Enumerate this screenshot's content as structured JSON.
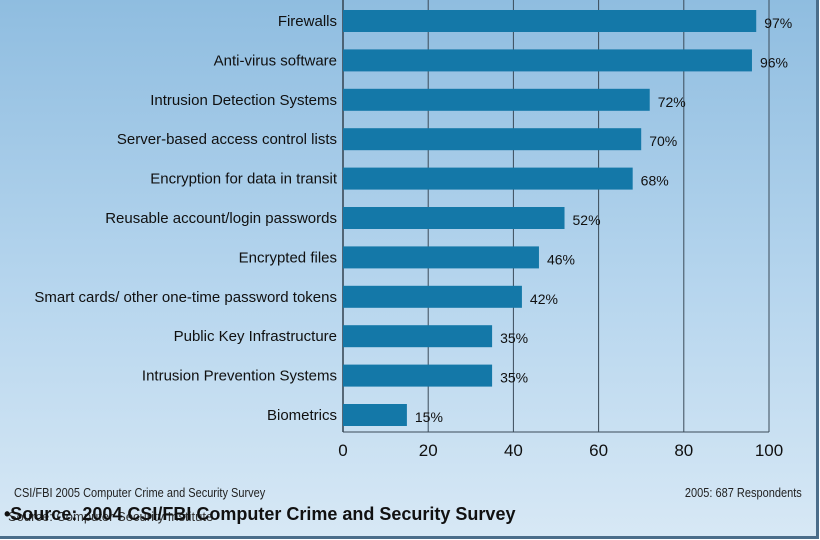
{
  "chart_data": {
    "type": "bar",
    "orientation": "horizontal",
    "categories": [
      "Firewalls",
      "Anti-virus software",
      "Intrusion Detection Systems",
      "Server-based access control lists",
      "Encryption for data in transit",
      "Reusable account/login passwords",
      "Encrypted files",
      "Smart cards/ other one-time password tokens",
      "Public Key Infrastructure",
      "Intrusion Prevention Systems",
      "Biometrics"
    ],
    "values": [
      97,
      96,
      72,
      70,
      68,
      52,
      46,
      42,
      35,
      35,
      15
    ],
    "value_labels": [
      "97%",
      "96%",
      "72%",
      "70%",
      "68%",
      "52%",
      "46%",
      "42%",
      "35%",
      "35%",
      "15%"
    ],
    "xlim": [
      0,
      100
    ],
    "xticks": [
      "0",
      "20",
      "40",
      "60",
      "80",
      "100"
    ],
    "grid": true,
    "bar_color": "#1478a8"
  },
  "footer": {
    "survey": "CSI/FBI 2005 Computer Crime and Security Survey",
    "respondents": "2005: 687 Respondents",
    "overlay_sub": "Source: Computer Security Institute",
    "source": "•Source: 2004 CSI/FBI Computer Crime and Security Survey"
  }
}
